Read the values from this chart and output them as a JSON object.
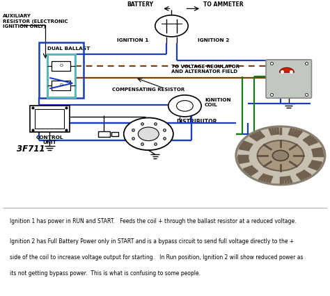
{
  "bg_color": "#ffffff",
  "wire_blue": "#1a3dbf",
  "wire_brown": "#7B3F00",
  "wire_green": "#1a7a1a",
  "black": "#000000",
  "teal": "#5bb8b8",
  "fig_width": 4.74,
  "fig_height": 4.26,
  "dpi": 100,
  "labels": {
    "aux_resistor": "AUXILIARY\nRESISTOR (ELECTRONIC\nIGNITION ONLY)",
    "dual_ballast": "DUAL BALLAST",
    "battery": "BATTERY",
    "to_ammeter": "TO AMMETER",
    "ignition1": "IGNITION 1",
    "ignition2": "IGNITION 2",
    "to_vr": "TO VOLTAGE REGULATOR\nAND ALTERNATOR FIELD",
    "comp_resistor": "COMPENSATING RESISTOR",
    "ignition_coil": "IGNITION\nCOIL",
    "distributor": "DISTRIBUTOR",
    "control_unit": "CONTROL\nUNIT",
    "part_number": "3F711"
  },
  "explanation_line1": "Ignition 1 has power in RUN and START.   Feeds the coil + through the ballast resistor at a reduced voltage.",
  "explanation_line2": "Ignition 2 has Full Battery Power only in START and is a bypass circuit to send full voltage directly to the +",
  "explanation_line3": "side of the coil to increase voltage output for starting.   In Run position, Ignition 2 will show reduced power as",
  "explanation_line4": "its not getting bypass power.  This is what is confusing to some people."
}
